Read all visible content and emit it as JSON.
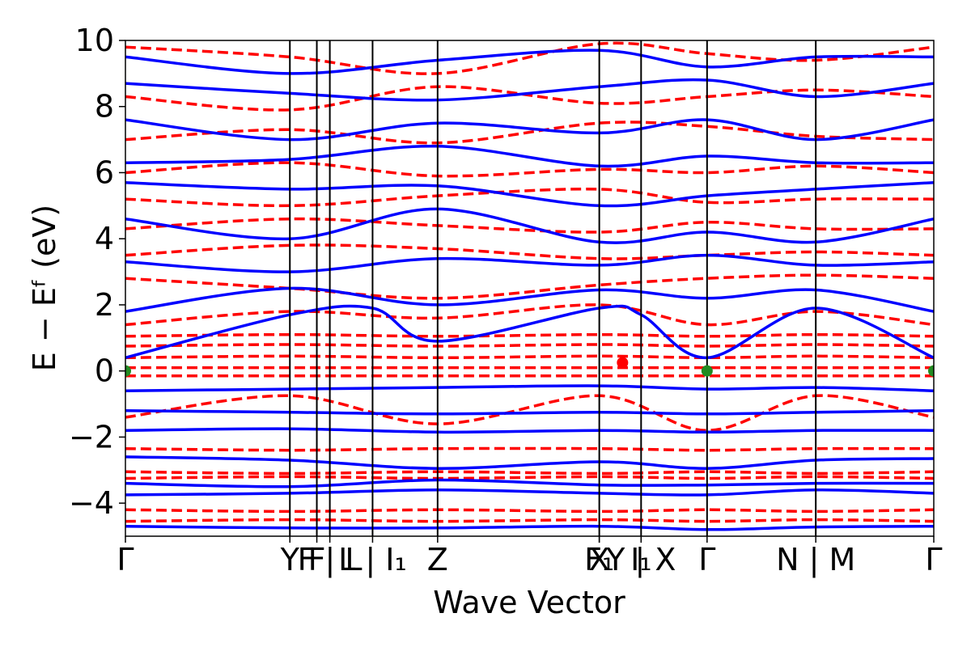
{
  "chart_data": {
    "type": "line",
    "title": "",
    "xlabel": "Wave Vector",
    "ylabel": "E − Eᶠ (eV)",
    "ylim": [
      -5,
      10
    ],
    "yticks": [
      -4,
      -2,
      0,
      2,
      4,
      6,
      8,
      10
    ],
    "ytick_labels": [
      "−4",
      "−2",
      "0",
      "2",
      "4",
      "6",
      "8",
      "10"
    ],
    "x_range": [
      0,
      8.7
    ],
    "kpoints": [
      {
        "x": 0.0,
        "label": "Γ"
      },
      {
        "x": 1.77,
        "label": "Y"
      },
      {
        "x": 2.06,
        "label": "F"
      },
      {
        "x": 2.2,
        "label": "F | L"
      },
      {
        "x": 2.66,
        "label": "L | I₁"
      },
      {
        "x": 3.36,
        "label": "Z"
      },
      {
        "x": 5.1,
        "label": "F₁"
      },
      {
        "x": 5.1,
        "label": "X"
      },
      {
        "x": 5.55,
        "label": "I₁"
      },
      {
        "x": 5.55,
        "label": "Y | X"
      },
      {
        "x": 6.26,
        "label": "Γ"
      },
      {
        "x": 7.43,
        "label": "N | M"
      },
      {
        "x": 8.7,
        "label": "Γ"
      }
    ],
    "grid": false,
    "series": [
      {
        "role": "solid",
        "color": "#0000ff",
        "style": "solid",
        "bands": [
          {
            "x": [
              0,
              1.77,
              3.36,
              5.1,
              6.26,
              7.43,
              8.7
            ],
            "y": [
              -4.7,
              -4.75,
              -4.75,
              -4.7,
              -4.8,
              -4.72,
              -4.7
            ]
          },
          {
            "x": [
              0,
              1.77,
              3.36,
              5.1,
              6.26,
              7.43,
              8.7
            ],
            "y": [
              -3.75,
              -3.7,
              -3.6,
              -3.7,
              -3.75,
              -3.6,
              -3.7
            ]
          },
          {
            "x": [
              0,
              1.77,
              3.36,
              5.1,
              6.26,
              7.43,
              8.7
            ],
            "y": [
              -3.4,
              -3.5,
              -3.3,
              -3.45,
              -3.45,
              -3.4,
              -3.4
            ]
          },
          {
            "x": [
              0,
              1.77,
              3.36,
              5.1,
              6.26,
              7.43,
              8.7
            ],
            "y": [
              -2.6,
              -2.7,
              -2.95,
              -2.75,
              -2.95,
              -2.7,
              -2.65
            ]
          },
          {
            "x": [
              0,
              1.77,
              3.36,
              5.1,
              6.26,
              7.43,
              8.7
            ],
            "y": [
              -1.8,
              -1.75,
              -1.85,
              -1.8,
              -1.85,
              -1.8,
              -1.8
            ]
          },
          {
            "x": [
              0,
              1.77,
              3.36,
              5.1,
              6.26,
              7.43,
              8.7
            ],
            "y": [
              -1.2,
              -1.25,
              -1.3,
              -1.25,
              -1.3,
              -1.25,
              -1.2
            ]
          },
          {
            "x": [
              0,
              1.77,
              3.36,
              5.1,
              6.26,
              7.43,
              8.7
            ],
            "y": [
              -0.6,
              -0.55,
              -0.5,
              -0.45,
              -0.55,
              -0.5,
              -0.6
            ]
          },
          {
            "x": [
              0,
              1.77,
              2.66,
              3.36,
              5.1,
              5.55,
              6.26,
              7.43,
              8.7
            ],
            "y": [
              0.4,
              1.7,
              1.9,
              0.9,
              1.9,
              1.7,
              0.4,
              1.9,
              0.4
            ]
          },
          {
            "x": [
              0,
              1.77,
              3.36,
              5.1,
              6.26,
              7.43,
              8.7
            ],
            "y": [
              1.8,
              2.5,
              2.0,
              2.45,
              2.2,
              2.45,
              1.8
            ]
          },
          {
            "x": [
              0,
              1.77,
              3.36,
              5.1,
              6.26,
              7.43,
              8.7
            ],
            "y": [
              3.3,
              3.0,
              3.4,
              3.2,
              3.5,
              3.2,
              3.3
            ]
          },
          {
            "x": [
              0,
              1.77,
              3.36,
              5.1,
              6.26,
              7.43,
              8.7
            ],
            "y": [
              4.6,
              4.0,
              4.9,
              3.9,
              4.2,
              3.9,
              4.6
            ]
          },
          {
            "x": [
              0,
              1.77,
              3.36,
              5.1,
              6.26,
              7.43,
              8.7
            ],
            "y": [
              5.7,
              5.5,
              5.6,
              5.0,
              5.3,
              5.5,
              5.7
            ]
          },
          {
            "x": [
              0,
              1.77,
              3.36,
              5.1,
              6.26,
              7.43,
              8.7
            ],
            "y": [
              6.3,
              6.4,
              6.8,
              6.2,
              6.5,
              6.3,
              6.3
            ]
          },
          {
            "x": [
              0,
              1.77,
              3.36,
              5.1,
              6.26,
              7.43,
              8.7
            ],
            "y": [
              7.6,
              7.0,
              7.5,
              7.2,
              7.6,
              7.0,
              7.6
            ]
          },
          {
            "x": [
              0,
              1.77,
              3.36,
              5.1,
              6.26,
              7.43,
              8.7
            ],
            "y": [
              8.7,
              8.4,
              8.2,
              8.6,
              8.8,
              8.3,
              8.7
            ]
          },
          {
            "x": [
              0,
              1.77,
              3.36,
              5.1,
              6.26,
              7.43,
              8.7
            ],
            "y": [
              9.5,
              9.0,
              9.4,
              9.7,
              9.2,
              9.5,
              9.5
            ]
          }
        ]
      },
      {
        "role": "dashed",
        "color": "#ff0000",
        "style": "dashed",
        "bands": [
          {
            "x": [
              0,
              1.77,
              3.36,
              5.1,
              6.26,
              7.43,
              8.7
            ],
            "y": [
              -4.55,
              -4.5,
              -4.55,
              -4.5,
              -4.55,
              -4.5,
              -4.55
            ]
          },
          {
            "x": [
              0,
              1.77,
              3.36,
              5.1,
              6.26,
              7.43,
              8.7
            ],
            "y": [
              -4.2,
              -4.25,
              -4.2,
              -4.25,
              -4.2,
              -4.25,
              -4.2
            ]
          },
          {
            "x": [
              0,
              1.77,
              3.36,
              5.1,
              6.26,
              7.43,
              8.7
            ],
            "y": [
              -3.25,
              -3.2,
              -3.25,
              -3.2,
              -3.25,
              -3.2,
              -3.25
            ]
          },
          {
            "x": [
              0,
              1.77,
              3.36,
              5.1,
              6.26,
              7.43,
              8.7
            ],
            "y": [
              -3.05,
              -3.1,
              -3.05,
              -3.1,
              -3.05,
              -3.1,
              -3.05
            ]
          },
          {
            "x": [
              0,
              1.77,
              3.36,
              5.1,
              6.26,
              7.43,
              8.7
            ],
            "y": [
              -2.35,
              -2.4,
              -2.35,
              -2.35,
              -2.4,
              -2.35,
              -2.35
            ]
          },
          {
            "x": [
              0,
              1.77,
              3.36,
              5.1,
              6.26,
              7.43,
              8.7
            ],
            "y": [
              -1.4,
              -0.75,
              -1.6,
              -0.75,
              -1.8,
              -0.75,
              -1.4
            ]
          },
          {
            "x": [
              0,
              1.77,
              3.36,
              5.1,
              6.26,
              7.43,
              8.7
            ],
            "y": [
              -0.15,
              -0.15,
              -0.15,
              -0.15,
              -0.15,
              -0.15,
              -0.15
            ]
          },
          {
            "x": [
              0,
              1.77,
              3.36,
              5.1,
              6.26,
              7.43,
              8.7
            ],
            "y": [
              0.1,
              0.1,
              0.1,
              0.1,
              0.1,
              0.1,
              0.1
            ]
          },
          {
            "x": [
              0,
              1.77,
              3.36,
              5.1,
              6.26,
              7.43,
              8.7
            ],
            "y": [
              0.4,
              0.45,
              0.4,
              0.45,
              0.4,
              0.45,
              0.4
            ]
          },
          {
            "x": [
              0,
              1.77,
              3.36,
              5.1,
              6.26,
              7.43,
              8.7
            ],
            "y": [
              0.75,
              0.8,
              0.75,
              0.8,
              0.75,
              0.8,
              0.75
            ]
          },
          {
            "x": [
              0,
              1.77,
              3.36,
              5.1,
              6.26,
              7.43,
              8.7
            ],
            "y": [
              1.05,
              1.1,
              1.05,
              1.1,
              1.05,
              1.1,
              1.05
            ]
          },
          {
            "x": [
              0,
              1.77,
              3.36,
              5.1,
              6.26,
              7.43,
              8.7
            ],
            "y": [
              1.4,
              1.8,
              1.6,
              2.0,
              1.4,
              1.8,
              1.4
            ]
          },
          {
            "x": [
              0,
              1.77,
              3.36,
              5.1,
              6.26,
              7.43,
              8.7
            ],
            "y": [
              2.8,
              2.5,
              2.2,
              2.6,
              2.8,
              2.9,
              2.8
            ]
          },
          {
            "x": [
              0,
              1.77,
              3.36,
              5.1,
              6.26,
              7.43,
              8.7
            ],
            "y": [
              3.5,
              3.8,
              3.7,
              3.4,
              3.5,
              3.6,
              3.5
            ]
          },
          {
            "x": [
              0,
              1.77,
              3.36,
              5.1,
              6.26,
              7.43,
              8.7
            ],
            "y": [
              4.3,
              4.6,
              4.4,
              4.2,
              4.5,
              4.3,
              4.3
            ]
          },
          {
            "x": [
              0,
              1.77,
              3.36,
              5.1,
              6.26,
              7.43,
              8.7
            ],
            "y": [
              5.2,
              5.0,
              5.3,
              5.5,
              5.1,
              5.2,
              5.2
            ]
          },
          {
            "x": [
              0,
              1.77,
              3.36,
              5.1,
              6.26,
              7.43,
              8.7
            ],
            "y": [
              6.0,
              6.3,
              5.9,
              6.1,
              6.0,
              6.2,
              6.0
            ]
          },
          {
            "x": [
              0,
              1.77,
              3.36,
              5.1,
              6.26,
              7.43,
              8.7
            ],
            "y": [
              7.0,
              7.3,
              6.9,
              7.5,
              7.4,
              7.1,
              7.0
            ]
          },
          {
            "x": [
              0,
              1.77,
              3.36,
              5.1,
              6.26,
              7.43,
              8.7
            ],
            "y": [
              8.3,
              7.9,
              8.6,
              8.1,
              8.3,
              8.5,
              8.3
            ]
          },
          {
            "x": [
              0,
              1.77,
              3.36,
              5.1,
              6.26,
              7.43,
              8.7
            ],
            "y": [
              9.8,
              9.5,
              9.0,
              9.9,
              9.6,
              9.4,
              9.8
            ]
          }
        ]
      }
    ],
    "markers": [
      {
        "x": 0.0,
        "y": 0.0,
        "color": "#228b22"
      },
      {
        "x": 5.35,
        "y": 0.25,
        "color": "#ff0000"
      },
      {
        "x": 6.26,
        "y": 0.0,
        "color": "#228b22"
      },
      {
        "x": 8.7,
        "y": 0.0,
        "color": "#228b22"
      }
    ]
  }
}
